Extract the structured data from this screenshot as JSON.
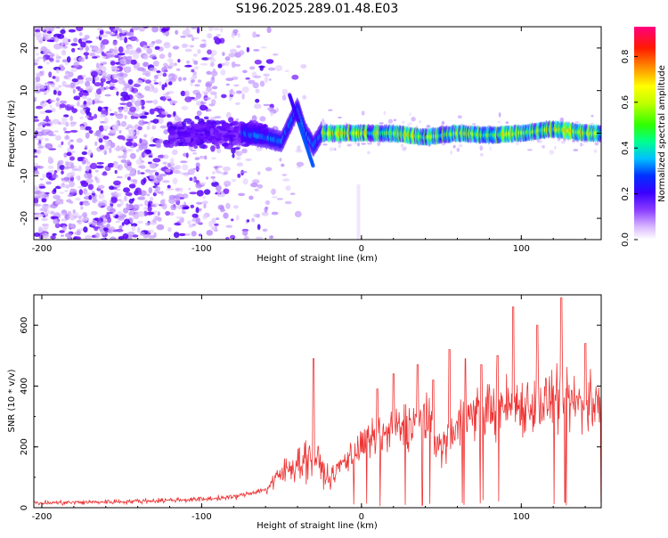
{
  "title": "S196.2025.289.01.48.E03",
  "chart_data": [
    {
      "type": "heatmap",
      "xlabel": "Height of straight line (km)",
      "ylabel": "Frequency (Hz)",
      "xlim": [
        -205,
        150
      ],
      "ylim": [
        -25,
        25
      ],
      "xticks": [
        -200,
        -100,
        0,
        100
      ],
      "yticks": [
        -20,
        -10,
        0,
        10,
        20
      ],
      "colorbar": {
        "label": "Normalized spectral amplitude",
        "range": [
          0.0,
          0.93
        ],
        "ticks": [
          "0.0",
          "0.2",
          "0.4",
          "0.6",
          "0.8"
        ],
        "tick_values": [
          0.0,
          0.2,
          0.4,
          0.6,
          0.8
        ],
        "colormap": [
          "#ffffff",
          "#d9b8ff",
          "#8a3cff",
          "#4a00ff",
          "#0000ff",
          "#00c8ff",
          "#00ff80",
          "#80ff00",
          "#ffff00",
          "#ff8000",
          "#ff0000",
          "#ff0080"
        ]
      },
      "ridge": {
        "description_points_x": [
          -75,
          -60,
          -50,
          -45,
          -40,
          -35,
          -30,
          -25,
          -20,
          0,
          20,
          40,
          60,
          80,
          100,
          120,
          140,
          150
        ],
        "description_points_y": [
          0,
          -1,
          -2,
          2,
          6,
          0,
          -3,
          0,
          0,
          0,
          0,
          -1,
          0,
          -0.5,
          0,
          1,
          0,
          0
        ]
      }
    },
    {
      "type": "line",
      "xlabel": "Height of straight line (km)",
      "ylabel": "SNR (10 * v/v)",
      "xlim": [
        -205,
        150
      ],
      "ylim": [
        0,
        700
      ],
      "xticks": [
        -200,
        -100,
        0,
        100
      ],
      "yticks": [
        0,
        200,
        400,
        600
      ],
      "color": "#ee3333",
      "trend_x": [
        -205,
        -150,
        -100,
        -80,
        -60,
        -50,
        -40,
        -30,
        -20,
        -10,
        0,
        10,
        20,
        40,
        50,
        60,
        80,
        100,
        120,
        150
      ],
      "trend_y": [
        15,
        20,
        28,
        35,
        60,
        110,
        150,
        170,
        90,
        160,
        200,
        230,
        250,
        300,
        190,
        280,
        330,
        340,
        350,
        340
      ],
      "spike_x": [
        -30,
        10,
        20,
        35,
        45,
        55,
        65,
        75,
        85,
        95,
        110,
        125,
        140
      ],
      "spike_y": [
        490,
        390,
        440,
        470,
        420,
        520,
        490,
        470,
        500,
        660,
        600,
        690,
        540
      ]
    }
  ]
}
